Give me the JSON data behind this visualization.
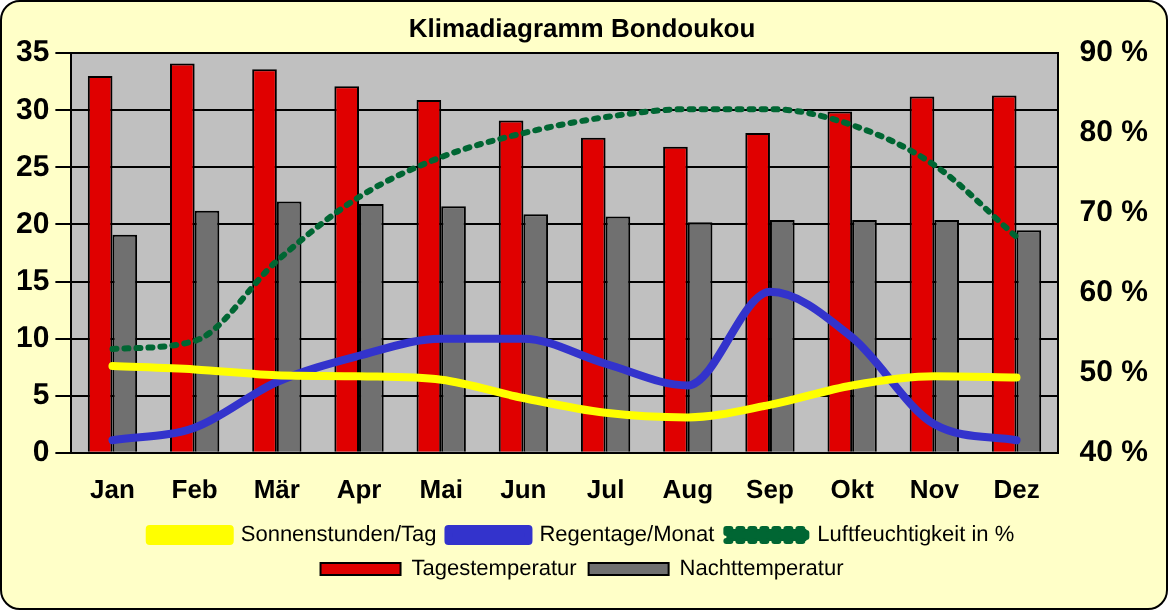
{
  "chart_data": {
    "type": "bar",
    "title": "Klimadiagramm Bondoukou",
    "categories": [
      "Jan",
      "Feb",
      "Mär",
      "Apr",
      "Mai",
      "Jun",
      "Jul",
      "Aug",
      "Sep",
      "Okt",
      "Nov",
      "Dez"
    ],
    "series": [
      {
        "name": "Tagestemperatur",
        "color": "#e00000",
        "values": [
          33,
          34.1,
          33.6,
          32.1,
          30.9,
          29.1,
          27.6,
          26.8,
          28,
          29.9,
          31.2,
          31.3
        ]
      },
      {
        "name": "Nachttemperatur",
        "color": "#707070",
        "values": [
          19.1,
          21.2,
          22,
          21.8,
          21.6,
          20.9,
          20.7,
          20.2,
          20.4,
          20.4,
          20.4,
          19.5
        ]
      },
      {
        "name": "Sonnenstunden/Tag",
        "type": "line",
        "color": "#ffff00",
        "values": [
          7.6,
          7.3,
          6.8,
          6.7,
          6.4,
          4.8,
          3.5,
          3.1,
          4.2,
          5.9,
          6.7,
          6.6
        ]
      },
      {
        "name": "Regentage/Monat",
        "type": "line",
        "color": "#3333cc",
        "values": [
          1.1,
          2.2,
          6.2,
          8.5,
          10,
          10,
          7.8,
          5.9,
          14.1,
          10.1,
          2.5,
          1.1
        ]
      },
      {
        "name": "Luftfeuchtigkeit in %",
        "type": "line",
        "axis": "y2",
        "line_style": "dotted",
        "color": "#006633",
        "values": [
          53,
          54,
          64,
          72,
          77,
          80,
          82,
          83,
          83,
          81,
          76,
          67
        ]
      }
    ],
    "ylim": [
      0,
      35
    ],
    "yticks": [
      0,
      5,
      10,
      15,
      20,
      25,
      30,
      35
    ],
    "y2lim": [
      40,
      90
    ],
    "y2ticks": [
      {
        "value": 40,
        "label": "40 %"
      },
      {
        "value": 50,
        "label": "50 %"
      },
      {
        "value": 60,
        "label": "60 %"
      },
      {
        "value": 70,
        "label": "70 %"
      },
      {
        "value": 80,
        "label": "80 %"
      },
      {
        "value": 90,
        "label": "90 %"
      }
    ],
    "grid": "y",
    "legend": "bottom"
  }
}
